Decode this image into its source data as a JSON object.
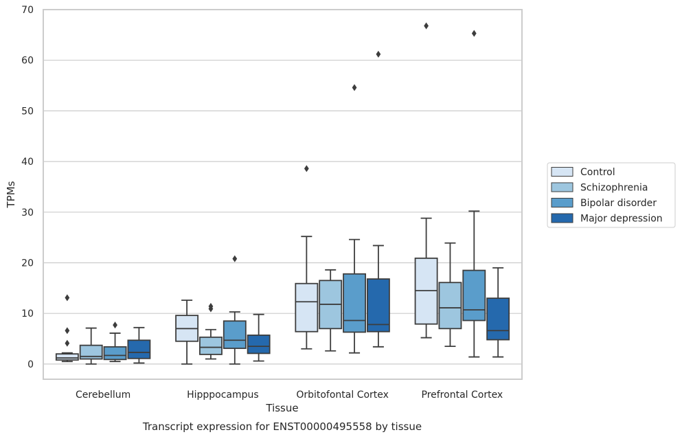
{
  "chart_data": {
    "type": "box",
    "caption": "Transcript expression for ENST00000495558 by tissue",
    "xlabel": "Tissue",
    "ylabel": "TPMs",
    "ylim": [
      -3,
      70
    ],
    "yticks": [
      0,
      10,
      20,
      30,
      40,
      50,
      60,
      70
    ],
    "ytick_labels": [
      "0",
      "10",
      "20",
      "30",
      "40",
      "50",
      "60",
      "70"
    ],
    "grid": "horizontal",
    "legend_position": "right",
    "categories": [
      "Cerebellum",
      "Hipppocampus",
      "Orbitofontal Cortex",
      "Prefrontal Cortex"
    ],
    "series": [
      {
        "name": "Control",
        "color": "#d6e5f4",
        "boxes": [
          {
            "whislo": 0.5,
            "q1": 0.8,
            "med": 1.2,
            "q3": 2.0,
            "whishi": 2.2,
            "fliers": [
              4.1,
              6.6,
              13.1
            ]
          },
          {
            "whislo": 0.0,
            "q1": 4.5,
            "med": 7.0,
            "q3": 9.6,
            "whishi": 12.6,
            "fliers": []
          },
          {
            "whislo": 3.0,
            "q1": 6.4,
            "med": 12.3,
            "q3": 15.9,
            "whishi": 25.2,
            "fliers": [
              38.6
            ]
          },
          {
            "whislo": 5.2,
            "q1": 7.9,
            "med": 14.5,
            "q3": 20.9,
            "whishi": 28.8,
            "fliers": [
              66.8
            ]
          }
        ]
      },
      {
        "name": "Schizophrenia",
        "color": "#9dc6df",
        "boxes": [
          {
            "whislo": 0.0,
            "q1": 1.0,
            "med": 1.5,
            "q3": 3.7,
            "whishi": 7.1,
            "fliers": []
          },
          {
            "whislo": 1.0,
            "q1": 1.9,
            "med": 3.3,
            "q3": 5.3,
            "whishi": 6.8,
            "fliers": [
              10.9,
              11.4
            ]
          },
          {
            "whislo": 2.6,
            "q1": 7.0,
            "med": 11.8,
            "q3": 16.5,
            "whishi": 18.6,
            "fliers": []
          },
          {
            "whislo": 3.5,
            "q1": 7.0,
            "med": 11.1,
            "q3": 16.1,
            "whishi": 23.9,
            "fliers": []
          }
        ]
      },
      {
        "name": "Bipolar disorder",
        "color": "#5a9dcb",
        "boxes": [
          {
            "whislo": 0.5,
            "q1": 0.9,
            "med": 1.7,
            "q3": 3.4,
            "whishi": 6.1,
            "fliers": [
              7.7
            ]
          },
          {
            "whislo": 0.0,
            "q1": 3.1,
            "med": 4.7,
            "q3": 8.5,
            "whishi": 10.3,
            "fliers": [
              20.8
            ]
          },
          {
            "whislo": 2.2,
            "q1": 6.3,
            "med": 8.6,
            "q3": 17.8,
            "whishi": 24.6,
            "fliers": [
              54.6
            ]
          },
          {
            "whislo": 1.4,
            "q1": 8.6,
            "med": 10.7,
            "q3": 18.5,
            "whishi": 30.2,
            "fliers": [
              65.3
            ]
          }
        ]
      },
      {
        "name": "Major depression",
        "color": "#2569ad",
        "boxes": [
          {
            "whislo": 0.2,
            "q1": 1.1,
            "med": 2.3,
            "q3": 4.7,
            "whishi": 7.2,
            "fliers": []
          },
          {
            "whislo": 0.6,
            "q1": 2.1,
            "med": 3.5,
            "q3": 5.7,
            "whishi": 9.8,
            "fliers": []
          },
          {
            "whislo": 3.4,
            "q1": 6.4,
            "med": 7.8,
            "q3": 16.8,
            "whishi": 23.4,
            "fliers": [
              61.2
            ]
          },
          {
            "whislo": 1.4,
            "q1": 4.8,
            "med": 6.6,
            "q3": 13.0,
            "whishi": 19.0,
            "fliers": []
          }
        ]
      }
    ]
  }
}
